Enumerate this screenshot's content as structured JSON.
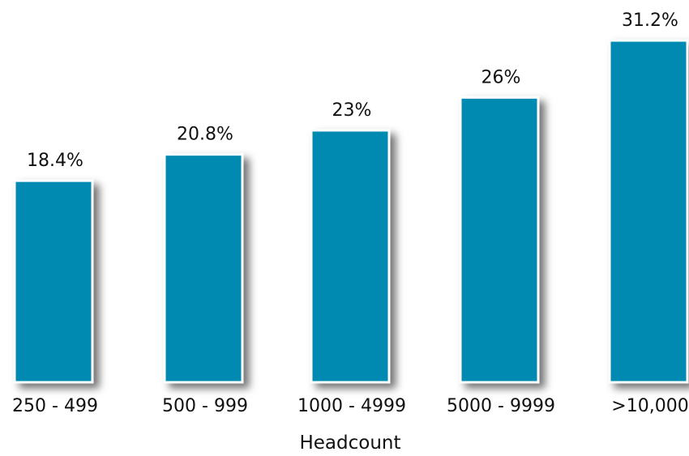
{
  "chart_data": {
    "type": "bar",
    "categories": [
      "250 - 499",
      "500 - 999",
      "1000 - 4999",
      "5000 - 9999",
      ">10,000"
    ],
    "values": [
      18.4,
      20.8,
      23,
      26,
      31.2
    ],
    "value_labels": [
      "18.4%",
      "20.8%",
      "23%",
      "26%",
      "31.2%"
    ],
    "title": "",
    "xlabel": "Headcount",
    "ylabel": "",
    "ylim": [
      0,
      31.2
    ],
    "grid": false,
    "legend": "none",
    "bar_color": "#0089B1"
  }
}
